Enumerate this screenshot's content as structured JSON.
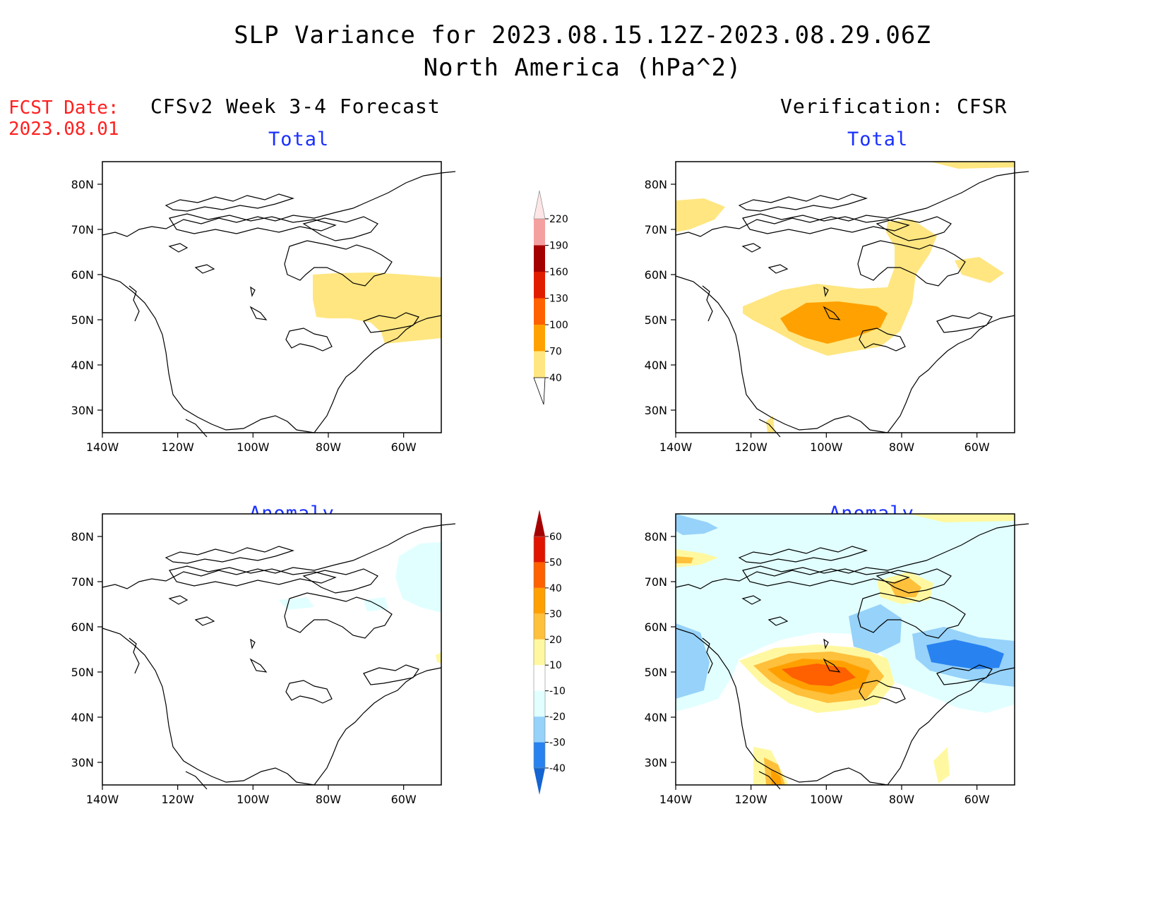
{
  "title": "SLP Variance for 2023.08.15.12Z-2023.08.29.06Z",
  "subtitle": "North America (hPa^2)",
  "fcst_date": {
    "label": "FCST Date:",
    "value": "2023.08.01"
  },
  "columns": {
    "forecast": "CFSv2 Week 3-4 Forecast",
    "verification": "Verification: CFSR"
  },
  "panels": {
    "fc_total": "Total",
    "fc_anom": "Anomaly",
    "vf_total": "Total",
    "vf_anom": "Anomaly"
  },
  "axes": {
    "lat_labels": [
      "80N",
      "70N",
      "60N",
      "50N",
      "40N",
      "30N"
    ],
    "lon_labels": [
      "140W",
      "120W",
      "100W",
      "80W",
      "60W"
    ]
  },
  "colorbar_total": {
    "levels": [
      "40",
      "70",
      "100",
      "130",
      "160",
      "190",
      "220"
    ],
    "colors": [
      "#ffe680",
      "#ffa100",
      "#ff6000",
      "#e11d00",
      "#a50000",
      "#f5a0a0",
      "#ffe6e6"
    ]
  },
  "colorbar_anomaly": {
    "levels": [
      "-40",
      "-30",
      "-20",
      "-10",
      "10",
      "20",
      "30",
      "40",
      "50",
      "60"
    ],
    "colors": [
      "#1464d2",
      "#2882f0",
      "#96d2fa",
      "#e1ffff",
      "#ffffff",
      "#fff8a0",
      "#ffc03c",
      "#ffa000",
      "#ff6000",
      "#e11400",
      "#a50000"
    ]
  },
  "chart_data": {
    "type": "heatmap",
    "variable": "SLP variance (hPa^2)",
    "domain": {
      "lon": [
        -140,
        -50
      ],
      "lat": [
        25,
        85
      ]
    },
    "features": {
      "fc_total": [
        {
          "region": "Hudson Bay to Labrador/Newfoundland",
          "range": "40-70"
        }
      ],
      "fc_anom": [
        {
          "region": "Baffin Bay / Labrador Sea",
          "range": "-10 to -20"
        }
      ],
      "vf_total": [
        {
          "region": "Northern Plains / Manitoba",
          "range": "70-100"
        },
        {
          "region": "Central Canada to Hudson Bay",
          "range": "40-70"
        },
        {
          "region": "Baffin Bay",
          "range": "40-70"
        },
        {
          "region": "Alaska / Beaufort Sea",
          "range": "40-70"
        }
      ],
      "vf_anom": [
        {
          "region": "Northern Plains / Manitoba",
          "range": "30-50"
        },
        {
          "region": "Gulf of St. Lawrence / Newfoundland",
          "range": "-30 to -40"
        },
        {
          "region": "Pacific Northwest coast",
          "range": "-20 to -30"
        },
        {
          "region": "Hudson Bay",
          "range": "-20 to -30"
        },
        {
          "region": "Baffin Bay",
          "range": "20-30"
        },
        {
          "region": "Gulf of California",
          "range": "20-40"
        }
      ]
    }
  }
}
